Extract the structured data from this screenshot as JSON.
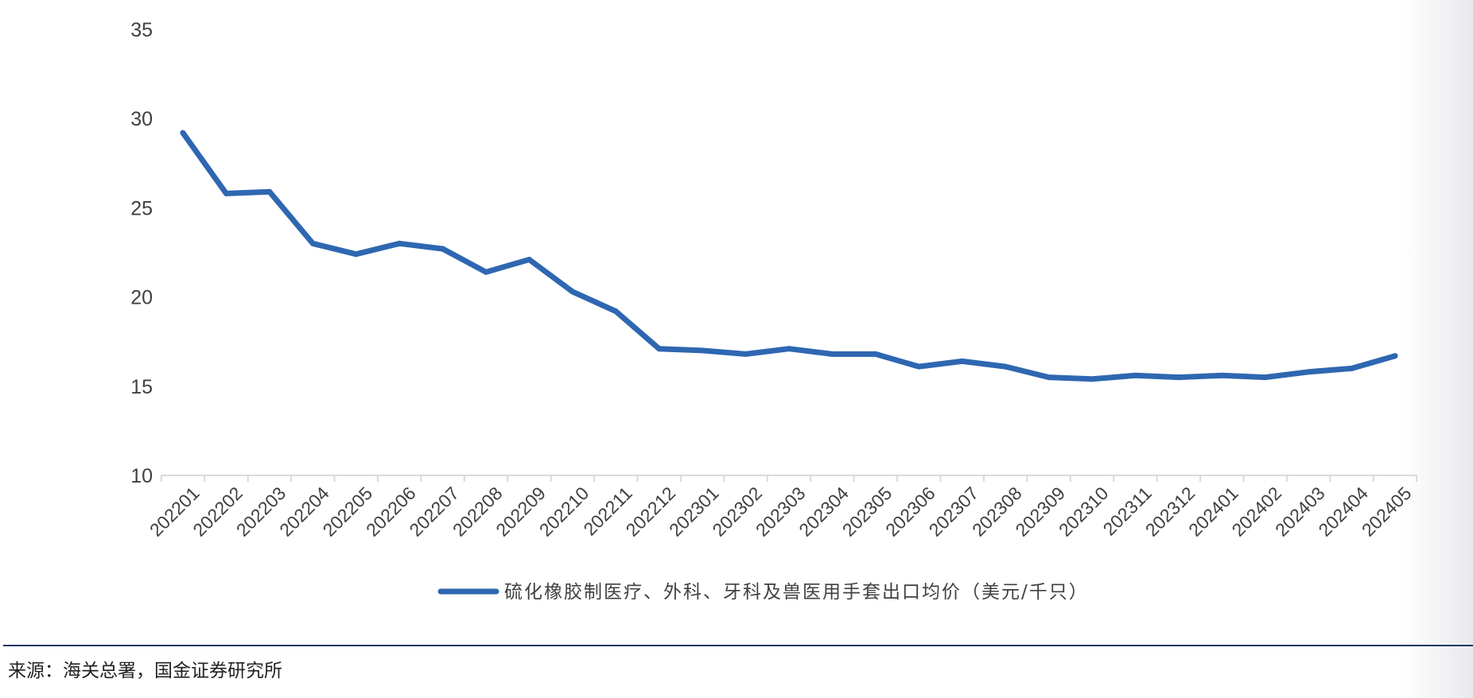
{
  "source_note": "来源：海关总署，国金证券研究所",
  "chart_data": {
    "type": "line",
    "categories": [
      "202201",
      "202202",
      "202203",
      "202204",
      "202205",
      "202206",
      "202207",
      "202208",
      "202209",
      "202210",
      "202211",
      "202212",
      "202301",
      "202302",
      "202303",
      "202304",
      "202305",
      "202306",
      "202307",
      "202308",
      "202309",
      "202310",
      "202311",
      "202312",
      "202401",
      "202402",
      "202403",
      "202404",
      "202405"
    ],
    "series": [
      {
        "name": "硫化橡胶制医疗、外科、牙科及兽医用手套出口均价（美元/千只）",
        "color": "#2e67b1",
        "values": [
          29.2,
          25.8,
          25.9,
          23.0,
          22.4,
          23.0,
          22.7,
          21.4,
          22.1,
          20.3,
          19.2,
          17.1,
          17.0,
          16.8,
          17.1,
          16.8,
          16.8,
          16.1,
          16.4,
          16.1,
          15.5,
          15.4,
          15.6,
          15.5,
          15.6,
          15.5,
          15.8,
          16.0,
          16.7
        ]
      }
    ],
    "yticks": [
      10,
      15,
      20,
      25,
      30,
      35
    ],
    "ylim": [
      10,
      35
    ],
    "grid": false,
    "legend_position": "bottom"
  }
}
